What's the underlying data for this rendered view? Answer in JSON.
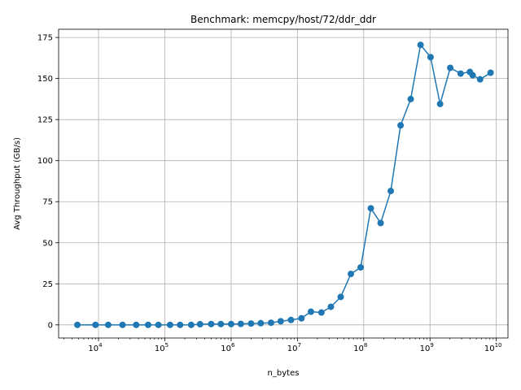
{
  "chart_data": {
    "type": "line",
    "title": "Benchmark: memcpy/host/72/ddr_ddr",
    "xlabel": "n_bytes",
    "ylabel": "Avg Throughput (GB/s)",
    "xscale": "log",
    "xlim": [
      2500,
      15000000000
    ],
    "ylim": [
      -8,
      180
    ],
    "grid": true,
    "x_ticks": [
      {
        "base": "10",
        "exp": "4",
        "value": 10000
      },
      {
        "base": "10",
        "exp": "5",
        "value": 100000
      },
      {
        "base": "10",
        "exp": "6",
        "value": 1000000
      },
      {
        "base": "10",
        "exp": "7",
        "value": 10000000
      },
      {
        "base": "10",
        "exp": "8",
        "value": 100000000
      },
      {
        "base": "10",
        "exp": "9",
        "value": 1000000000
      },
      {
        "base": "10",
        "exp": "10",
        "value": 10000000000
      }
    ],
    "y_ticks": [
      "0",
      "25",
      "50",
      "75",
      "100",
      "125",
      "150",
      "175"
    ],
    "series": [
      {
        "color": "#1f77b4",
        "marker": "circle",
        "x": [
          4800,
          9000,
          14000,
          23000,
          37000,
          56000,
          80000,
          120000,
          170000,
          250000,
          340000,
          500000,
          700000,
          1000000,
          1400000,
          2000000,
          2800000,
          4000000,
          5600000,
          8000000,
          11500000,
          16000000,
          23000000,
          32000000,
          45000000,
          64000000,
          90000000,
          128000000,
          180000000,
          256000000,
          360000000,
          512000000,
          720000000,
          1020000000,
          1420000000,
          2020000000,
          2900000000,
          4000000000,
          4400000000,
          5700000000,
          8200000000
        ],
        "y": [
          0,
          0,
          0,
          0,
          0,
          0,
          0,
          0,
          0,
          0,
          0.4,
          0.5,
          0.5,
          0.5,
          0.6,
          0.8,
          1.0,
          1.3,
          2.2,
          3.0,
          4.0,
          8.0,
          7.5,
          11.0,
          17.0,
          31.0,
          35.0,
          71.0,
          62.0,
          81.5,
          121.5,
          137.5,
          170.5,
          163.0,
          134.5,
          156.5,
          153.0,
          154.0,
          152.0,
          149.5,
          153.5
        ]
      }
    ]
  }
}
